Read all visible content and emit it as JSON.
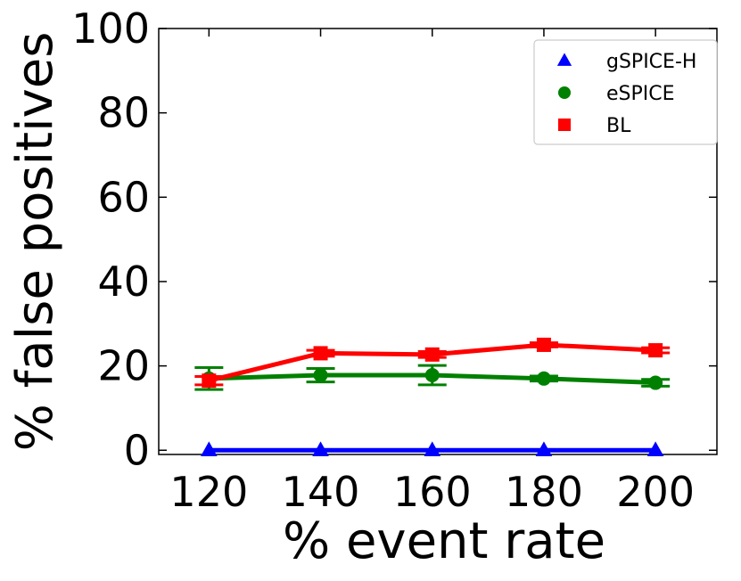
{
  "chart_data": {
    "type": "line",
    "title": "",
    "xlabel": "% event rate",
    "ylabel": "% false positives",
    "x": [
      120,
      140,
      160,
      180,
      200
    ],
    "xlim": [
      111,
      211
    ],
    "ylim": [
      -1,
      100
    ],
    "xticks": [
      120,
      140,
      160,
      180,
      200
    ],
    "yticks": [
      0,
      20,
      40,
      60,
      80,
      100
    ],
    "grid": false,
    "legend_position": "top-right",
    "series": [
      {
        "name": "gSPICE-H",
        "color": "#0000ff",
        "marker": "triangle",
        "values": [
          0,
          0,
          0,
          0,
          0
        ],
        "errors": [
          0,
          0,
          0,
          0,
          0
        ]
      },
      {
        "name": "eSPICE",
        "color": "#008000",
        "marker": "circle",
        "values": [
          17.0,
          17.8,
          17.8,
          17.0,
          16.0
        ],
        "errors": [
          2.6,
          1.6,
          2.3,
          0.6,
          0.8
        ]
      },
      {
        "name": "BL",
        "color": "#ff0000",
        "marker": "square",
        "values": [
          16.5,
          23.0,
          22.7,
          25.0,
          23.7
        ],
        "errors": [
          1.0,
          0.7,
          0.7,
          0.5,
          0.6
        ]
      }
    ]
  }
}
